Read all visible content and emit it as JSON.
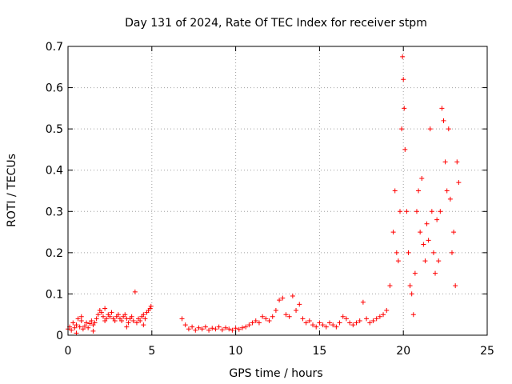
{
  "chart_data": {
    "type": "scatter",
    "title": "Day 131 of 2024, Rate Of TEC Index for receiver stpm",
    "xlabel": "GPS time / hours",
    "ylabel": "ROTI / TECUs",
    "xlim": [
      0,
      25
    ],
    "ylim": [
      0,
      0.7
    ],
    "xticks": [
      0,
      5,
      10,
      15,
      20,
      25
    ],
    "yticks": [
      0,
      0.1,
      0.2,
      0.3,
      0.4,
      0.5,
      0.6,
      0.7
    ],
    "xtick_labels": [
      "0",
      "5",
      "10",
      "15",
      "20",
      "25"
    ],
    "ytick_labels": [
      "0",
      "0.1",
      "0.2",
      "0.3",
      "0.4",
      "0.5",
      "0.6",
      "0.7"
    ],
    "grid": true,
    "marker": "plus",
    "color": "#ff0000",
    "points": [
      [
        0.0,
        0.015
      ],
      [
        0.1,
        0.02
      ],
      [
        0.2,
        0.012
      ],
      [
        0.3,
        0.03
      ],
      [
        0.4,
        0.018
      ],
      [
        0.5,
        0.025
      ],
      [
        0.6,
        0.04
      ],
      [
        0.7,
        0.02
      ],
      [
        0.8,
        0.035
      ],
      [
        0.9,
        0.015
      ],
      [
        1.0,
        0.022
      ],
      [
        1.1,
        0.03
      ],
      [
        1.2,
        0.018
      ],
      [
        1.3,
        0.028
      ],
      [
        1.4,
        0.035
      ],
      [
        1.5,
        0.025
      ],
      [
        1.6,
        0.03
      ],
      [
        1.7,
        0.04
      ],
      [
        1.8,
        0.05
      ],
      [
        1.9,
        0.06
      ],
      [
        2.0,
        0.055
      ],
      [
        2.1,
        0.045
      ],
      [
        2.2,
        0.035
      ],
      [
        2.3,
        0.04
      ],
      [
        2.4,
        0.05
      ],
      [
        2.5,
        0.045
      ],
      [
        2.6,
        0.055
      ],
      [
        2.7,
        0.04
      ],
      [
        2.8,
        0.035
      ],
      [
        2.9,
        0.045
      ],
      [
        3.0,
        0.05
      ],
      [
        3.1,
        0.04
      ],
      [
        3.2,
        0.035
      ],
      [
        3.3,
        0.045
      ],
      [
        3.4,
        0.05
      ],
      [
        3.5,
        0.04
      ],
      [
        3.6,
        0.03
      ],
      [
        3.7,
        0.04
      ],
      [
        3.8,
        0.045
      ],
      [
        3.9,
        0.035
      ],
      [
        4.0,
        0.105
      ],
      [
        4.1,
        0.03
      ],
      [
        4.2,
        0.04
      ],
      [
        4.3,
        0.035
      ],
      [
        4.4,
        0.045
      ],
      [
        4.5,
        0.05
      ],
      [
        4.6,
        0.04
      ],
      [
        4.7,
        0.055
      ],
      [
        4.8,
        0.06
      ],
      [
        4.9,
        0.065
      ],
      [
        0.5,
        0.005
      ],
      [
        1.5,
        0.01
      ],
      [
        3.5,
        0.02
      ],
      [
        4.5,
        0.025
      ],
      [
        0.8,
        0.045
      ],
      [
        2.2,
        0.065
      ],
      [
        4.95,
        0.07
      ],
      [
        6.8,
        0.04
      ],
      [
        7.0,
        0.025
      ],
      [
        7.2,
        0.015
      ],
      [
        7.4,
        0.02
      ],
      [
        7.6,
        0.012
      ],
      [
        7.8,
        0.018
      ],
      [
        8.0,
        0.015
      ],
      [
        8.2,
        0.02
      ],
      [
        8.4,
        0.012
      ],
      [
        8.6,
        0.017
      ],
      [
        8.8,
        0.015
      ],
      [
        9.0,
        0.02
      ],
      [
        9.2,
        0.013
      ],
      [
        9.4,
        0.018
      ],
      [
        9.6,
        0.015
      ],
      [
        9.8,
        0.012
      ],
      [
        10.0,
        0.017
      ],
      [
        10.2,
        0.014
      ],
      [
        10.4,
        0.018
      ],
      [
        10.6,
        0.02
      ],
      [
        10.8,
        0.025
      ],
      [
        11.0,
        0.03
      ],
      [
        11.2,
        0.035
      ],
      [
        11.4,
        0.03
      ],
      [
        11.6,
        0.045
      ],
      [
        11.8,
        0.04
      ],
      [
        12.0,
        0.035
      ],
      [
        12.2,
        0.045
      ],
      [
        12.4,
        0.06
      ],
      [
        12.6,
        0.085
      ],
      [
        12.8,
        0.09
      ],
      [
        13.0,
        0.05
      ],
      [
        13.2,
        0.045
      ],
      [
        13.4,
        0.095
      ],
      [
        13.6,
        0.06
      ],
      [
        13.8,
        0.075
      ],
      [
        14.0,
        0.04
      ],
      [
        14.2,
        0.03
      ],
      [
        14.4,
        0.035
      ],
      [
        14.6,
        0.025
      ],
      [
        14.8,
        0.02
      ],
      [
        15.0,
        0.03
      ],
      [
        15.2,
        0.025
      ],
      [
        15.4,
        0.02
      ],
      [
        15.6,
        0.03
      ],
      [
        15.8,
        0.025
      ],
      [
        16.0,
        0.02
      ],
      [
        16.2,
        0.03
      ],
      [
        16.4,
        0.045
      ],
      [
        16.6,
        0.04
      ],
      [
        16.8,
        0.03
      ],
      [
        17.0,
        0.025
      ],
      [
        17.2,
        0.03
      ],
      [
        17.4,
        0.035
      ],
      [
        17.6,
        0.08
      ],
      [
        17.8,
        0.04
      ],
      [
        18.0,
        0.03
      ],
      [
        18.2,
        0.035
      ],
      [
        18.4,
        0.04
      ],
      [
        18.6,
        0.045
      ],
      [
        18.8,
        0.05
      ],
      [
        19.0,
        0.06
      ],
      [
        19.2,
        0.12
      ],
      [
        19.4,
        0.25
      ],
      [
        19.5,
        0.35
      ],
      [
        19.6,
        0.2
      ],
      [
        19.7,
        0.18
      ],
      [
        19.8,
        0.3
      ],
      [
        19.9,
        0.5
      ],
      [
        19.95,
        0.675
      ],
      [
        20.0,
        0.62
      ],
      [
        20.05,
        0.55
      ],
      [
        20.1,
        0.45
      ],
      [
        20.2,
        0.3
      ],
      [
        20.3,
        0.2
      ],
      [
        20.4,
        0.12
      ],
      [
        20.5,
        0.1
      ],
      [
        20.6,
        0.05
      ],
      [
        20.7,
        0.15
      ],
      [
        20.8,
        0.3
      ],
      [
        20.9,
        0.35
      ],
      [
        21.0,
        0.25
      ],
      [
        21.1,
        0.38
      ],
      [
        21.2,
        0.22
      ],
      [
        21.3,
        0.18
      ],
      [
        21.4,
        0.27
      ],
      [
        21.5,
        0.23
      ],
      [
        21.6,
        0.5
      ],
      [
        21.7,
        0.3
      ],
      [
        21.8,
        0.2
      ],
      [
        21.9,
        0.15
      ],
      [
        22.0,
        0.28
      ],
      [
        22.1,
        0.18
      ],
      [
        22.2,
        0.3
      ],
      [
        22.3,
        0.55
      ],
      [
        22.4,
        0.52
      ],
      [
        22.5,
        0.42
      ],
      [
        22.6,
        0.35
      ],
      [
        22.7,
        0.5
      ],
      [
        22.8,
        0.33
      ],
      [
        22.9,
        0.2
      ],
      [
        23.0,
        0.25
      ],
      [
        23.1,
        0.12
      ],
      [
        23.2,
        0.42
      ],
      [
        23.3,
        0.37
      ]
    ]
  }
}
